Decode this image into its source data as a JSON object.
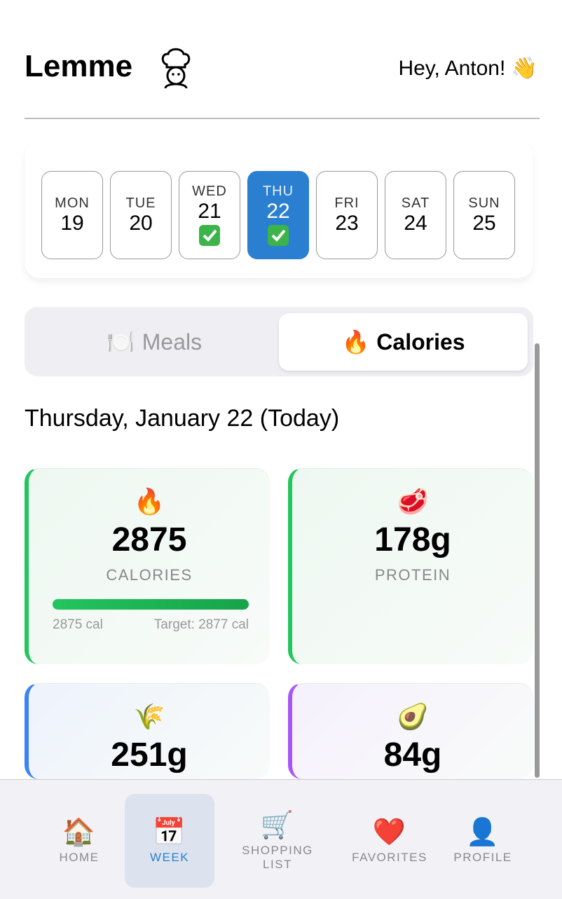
{
  "header": {
    "title": "Lemme",
    "greeting": "Hey, Anton! 👋"
  },
  "days": [
    {
      "dow": "MON",
      "date": "19",
      "done": false
    },
    {
      "dow": "TUE",
      "date": "20",
      "done": false
    },
    {
      "dow": "WED",
      "date": "21",
      "done": true
    },
    {
      "dow": "THU",
      "date": "22",
      "done": true,
      "selected": true
    },
    {
      "dow": "FRI",
      "date": "23",
      "done": false
    },
    {
      "dow": "SAT",
      "date": "24",
      "done": false
    },
    {
      "dow": "SUN",
      "date": "25",
      "done": false
    }
  ],
  "tabs": [
    {
      "icon": "🍽️",
      "label": "Meals"
    },
    {
      "icon": "🔥",
      "label": "Calories",
      "active": true
    }
  ],
  "date_heading": "Thursday, January 22 (Today)",
  "cards": [
    {
      "icon": "🔥",
      "value": "2875",
      "label": "CALORIES",
      "color": "#22c55e",
      "bg": "#eef8f1",
      "progress": {
        "value": 2875,
        "target": 2877,
        "value_label": "2875 cal",
        "target_label": "Target: 2877 cal"
      }
    },
    {
      "icon": "🥩",
      "value": "178g",
      "label": "PROTEIN",
      "color": "#22c55e",
      "bg": "#eef8f1"
    },
    {
      "icon": "🌾",
      "value": "251g",
      "color": "#3b82f6",
      "bg": "#eef3fc"
    },
    {
      "icon": "🥑",
      "value": "84g",
      "color": "#a855f7",
      "bg": "#f6f1fd"
    }
  ],
  "nav": [
    {
      "icon": "🏠",
      "label": "HOME"
    },
    {
      "icon": "📅",
      "label": "WEEK",
      "active": true
    },
    {
      "icon": "🛒",
      "label": "SHOPPING LIST"
    },
    {
      "icon": "❤️",
      "label": "FAVORITES"
    },
    {
      "icon": "👤",
      "label": "PROFILE"
    }
  ]
}
